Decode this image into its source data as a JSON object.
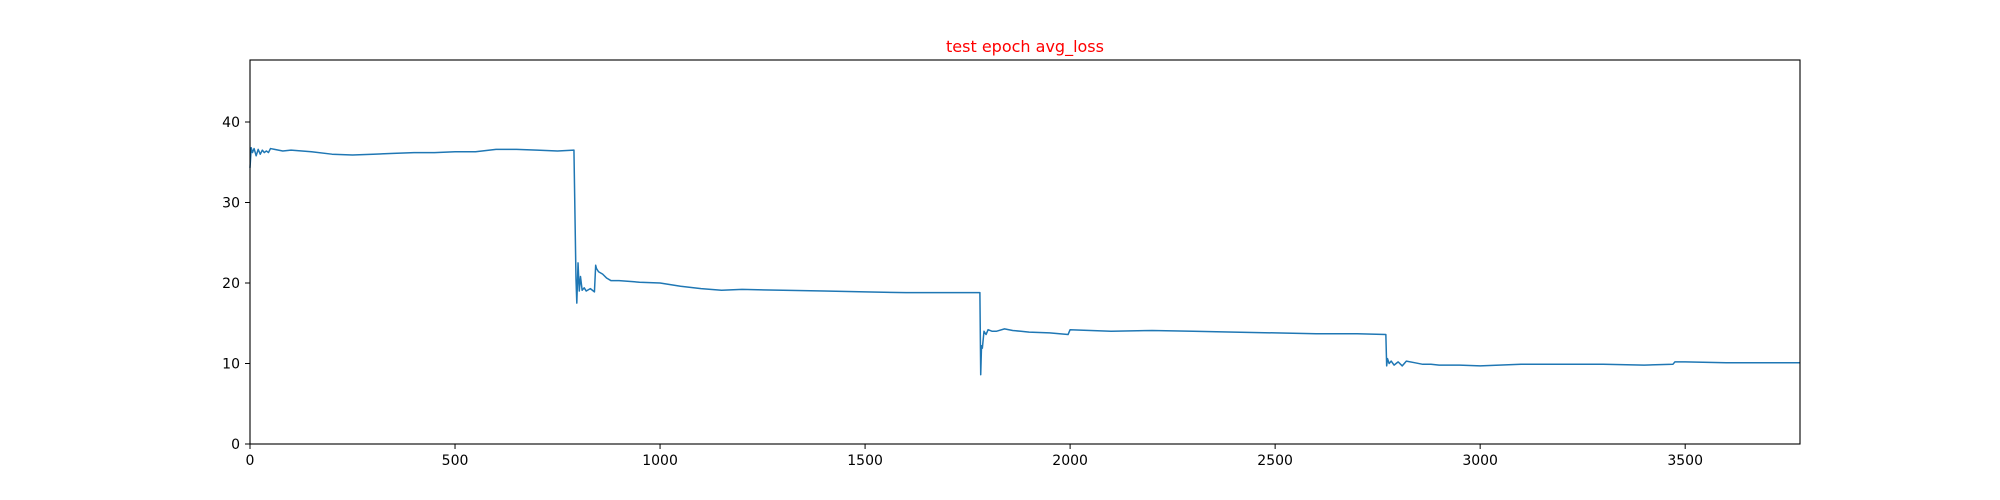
{
  "chart_data": {
    "type": "line",
    "title": "test epoch avg_loss",
    "title_color": "#ff0000",
    "xlabel": "",
    "ylabel": "",
    "xlim": [
      0,
      3780
    ],
    "ylim": [
      0,
      47.7
    ],
    "x_ticks": [
      0,
      500,
      1000,
      1500,
      2000,
      2500,
      3000,
      3500
    ],
    "x_tick_labels": [
      "0",
      "500",
      "1000",
      "1500",
      "2000",
      "2500",
      "3000",
      "3500"
    ],
    "y_ticks": [
      0,
      10,
      20,
      30,
      40
    ],
    "y_tick_labels": [
      "0",
      "10",
      "20",
      "30",
      "40"
    ],
    "grid": false,
    "legend": "none",
    "series": [
      {
        "color": "#1f77b4",
        "x": [
          0,
          3,
          6,
          10,
          15,
          20,
          25,
          30,
          35,
          40,
          45,
          50,
          60,
          80,
          100,
          150,
          200,
          250,
          300,
          350,
          400,
          450,
          500,
          550,
          600,
          650,
          700,
          750,
          790,
          795,
          797,
          800,
          803,
          806,
          810,
          815,
          820,
          830,
          840,
          843,
          845,
          850,
          860,
          870,
          880,
          900,
          950,
          1000,
          1050,
          1100,
          1150,
          1200,
          1300,
          1400,
          1500,
          1600,
          1700,
          1780,
          1782,
          1784,
          1786,
          1790,
          1795,
          1800,
          1810,
          1820,
          1840,
          1860,
          1880,
          1900,
          1950,
          1995,
          2000,
          2100,
          2200,
          2300,
          2400,
          2500,
          2600,
          2700,
          2770,
          2772,
          2774,
          2778,
          2783,
          2790,
          2800,
          2810,
          2820,
          2840,
          2860,
          2880,
          2900,
          2950,
          3000,
          3100,
          3200,
          3300,
          3400,
          3470,
          3475,
          3500,
          3600,
          3700,
          3780
        ],
        "y": [
          34.3,
          36.8,
          36.2,
          36.7,
          35.8,
          36.6,
          36.0,
          36.5,
          36.2,
          36.4,
          36.2,
          36.7,
          36.6,
          36.4,
          36.5,
          36.3,
          36.0,
          35.9,
          36.0,
          36.1,
          36.2,
          36.2,
          36.3,
          36.3,
          36.6,
          36.6,
          36.5,
          36.4,
          36.5,
          20.5,
          17.5,
          22.5,
          19.0,
          20.8,
          19.1,
          19.4,
          19.0,
          19.3,
          18.9,
          22.2,
          21.8,
          21.4,
          21.1,
          20.6,
          20.3,
          20.3,
          20.1,
          20.0,
          19.6,
          19.3,
          19.1,
          19.2,
          19.1,
          19.0,
          18.9,
          18.8,
          18.8,
          18.8,
          8.6,
          12.2,
          11.9,
          14.0,
          13.6,
          14.2,
          14.0,
          14.0,
          14.3,
          14.1,
          14.0,
          13.9,
          13.8,
          13.6,
          14.2,
          14.0,
          14.1,
          14.0,
          13.9,
          13.8,
          13.7,
          13.7,
          13.6,
          9.7,
          10.6,
          10.0,
          10.3,
          9.8,
          10.2,
          9.7,
          10.3,
          10.1,
          9.9,
          9.9,
          9.8,
          9.8,
          9.7,
          9.9,
          9.9,
          9.9,
          9.8,
          9.9,
          10.2,
          10.2,
          10.1,
          10.1,
          10.1
        ]
      }
    ]
  }
}
